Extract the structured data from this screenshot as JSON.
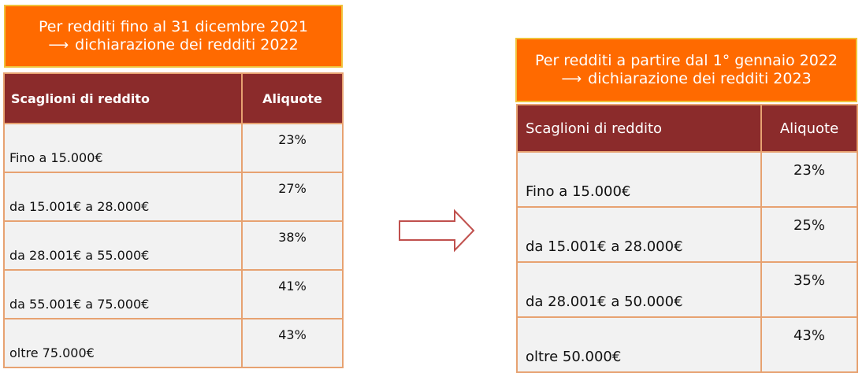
{
  "left": {
    "banner_line1": "Per redditi fino al 31 dicembre 2021",
    "banner_line2": "dichiarazione dei redditi 2022",
    "header": {
      "brackets": "Scaglioni di reddito",
      "rates": "Aliquote"
    },
    "rows": [
      {
        "bracket": "Fino a 15.000€",
        "rate": "23%"
      },
      {
        "bracket": "da 15.001€ a 28.000€",
        "rate": "27%"
      },
      {
        "bracket": "da 28.001€ a 55.000€",
        "rate": "38%"
      },
      {
        "bracket": "da 55.001€ a 75.000€",
        "rate": "41%"
      },
      {
        "bracket": "oltre 75.000€",
        "rate": "43%"
      }
    ]
  },
  "right": {
    "banner_line1": "Per redditi a partire dal 1° gennaio 2022",
    "banner_line2": "dichiarazione dei redditi 2023",
    "header": {
      "brackets": "Scaglioni di reddito",
      "rates": "Aliquote"
    },
    "rows": [
      {
        "bracket": "Fino a 15.000€",
        "rate": "23%"
      },
      {
        "bracket": "da 15.001€ a 28.000€",
        "rate": "25%"
      },
      {
        "bracket": "da 28.001€ a 50.000€",
        "rate": "35%"
      },
      {
        "bracket": "oltre 50.000€",
        "rate": "43%"
      }
    ]
  },
  "colors": {
    "banner": "#ff6a00",
    "banner_border": "#f0c23a",
    "header": "#8b2b2b",
    "cell": "#f2f2f2",
    "cell_border": "#e7a271"
  }
}
